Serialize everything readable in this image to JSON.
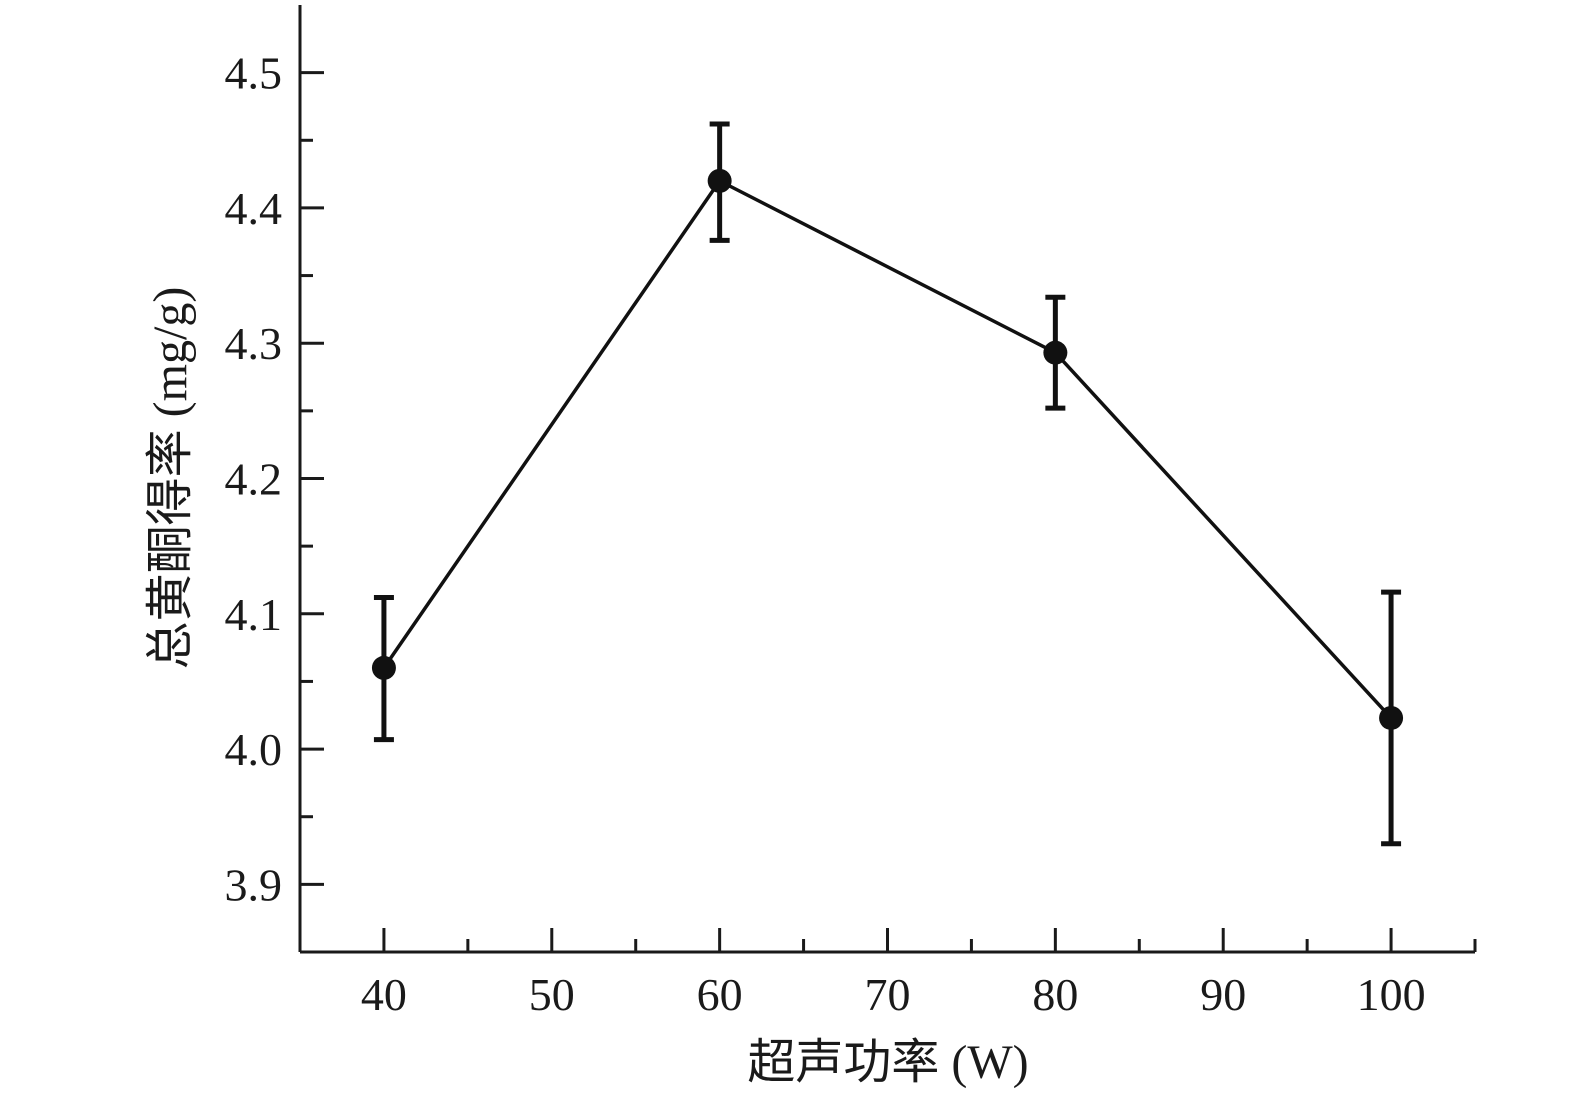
{
  "chart_data": {
    "type": "line",
    "xlabel": "超声功率 (W)",
    "ylabel": "总黄酮得率 (mg/g)",
    "xlim": [
      35,
      105
    ],
    "ylim": [
      3.85,
      4.55
    ],
    "x_ticks": [
      40,
      50,
      60,
      70,
      80,
      90,
      100
    ],
    "x_tick_labels": [
      "40",
      "50",
      "60",
      "70",
      "80",
      "90",
      "100"
    ],
    "y_ticks": [
      3.9,
      4.0,
      4.1,
      4.2,
      4.3,
      4.4,
      4.5
    ],
    "y_tick_labels": [
      "3.9",
      "4.0",
      "4.1",
      "4.2",
      "4.3",
      "4.4",
      "4.5"
    ],
    "grid": false,
    "series": [
      {
        "x": [
          40,
          60,
          80,
          100
        ],
        "y": [
          4.06,
          4.42,
          4.293,
          4.023
        ],
        "err_low": [
          4.007,
          4.376,
          4.252,
          3.93
        ],
        "err_high": [
          4.112,
          4.462,
          4.334,
          4.116
        ],
        "color": "#111111",
        "marker": "circle"
      }
    ]
  }
}
